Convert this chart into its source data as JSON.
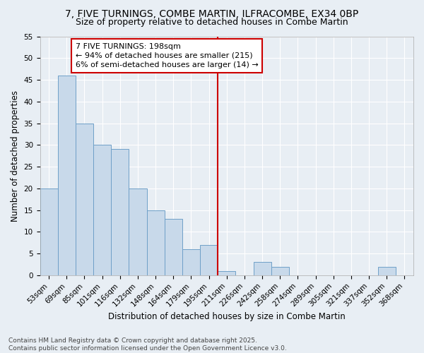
{
  "title1": "7, FIVE TURNINGS, COMBE MARTIN, ILFRACOMBE, EX34 0BP",
  "title2": "Size of property relative to detached houses in Combe Martin",
  "xlabel": "Distribution of detached houses by size in Combe Martin",
  "ylabel": "Number of detached properties",
  "categories": [
    "53sqm",
    "69sqm",
    "85sqm",
    "101sqm",
    "116sqm",
    "132sqm",
    "148sqm",
    "164sqm",
    "179sqm",
    "195sqm",
    "211sqm",
    "226sqm",
    "242sqm",
    "258sqm",
    "274sqm",
    "289sqm",
    "305sqm",
    "321sqm",
    "337sqm",
    "352sqm",
    "368sqm"
  ],
  "values": [
    20,
    46,
    35,
    30,
    29,
    20,
    15,
    13,
    6,
    7,
    1,
    0,
    3,
    2,
    0,
    0,
    0,
    0,
    0,
    2,
    0
  ],
  "bar_color": "#c8d9ea",
  "bar_edge_color": "#6fa0c8",
  "fig_facecolor": "#e8eef4",
  "ax_facecolor": "#e8eef4",
  "grid_color": "#ffffff",
  "vline_x": 9.5,
  "vline_color": "#cc0000",
  "annotation_text": "7 FIVE TURNINGS: 198sqm\n← 94% of detached houses are smaller (215)\n6% of semi-detached houses are larger (14) →",
  "annotation_box_color": "#cc0000",
  "ylim": [
    0,
    55
  ],
  "yticks": [
    0,
    5,
    10,
    15,
    20,
    25,
    30,
    35,
    40,
    45,
    50,
    55
  ],
  "footer": "Contains HM Land Registry data © Crown copyright and database right 2025.\nContains public sector information licensed under the Open Government Licence v3.0.",
  "title_fontsize": 10,
  "subtitle_fontsize": 9,
  "axis_label_fontsize": 8.5,
  "tick_fontsize": 7.5,
  "annotation_fontsize": 8,
  "footer_fontsize": 6.5
}
